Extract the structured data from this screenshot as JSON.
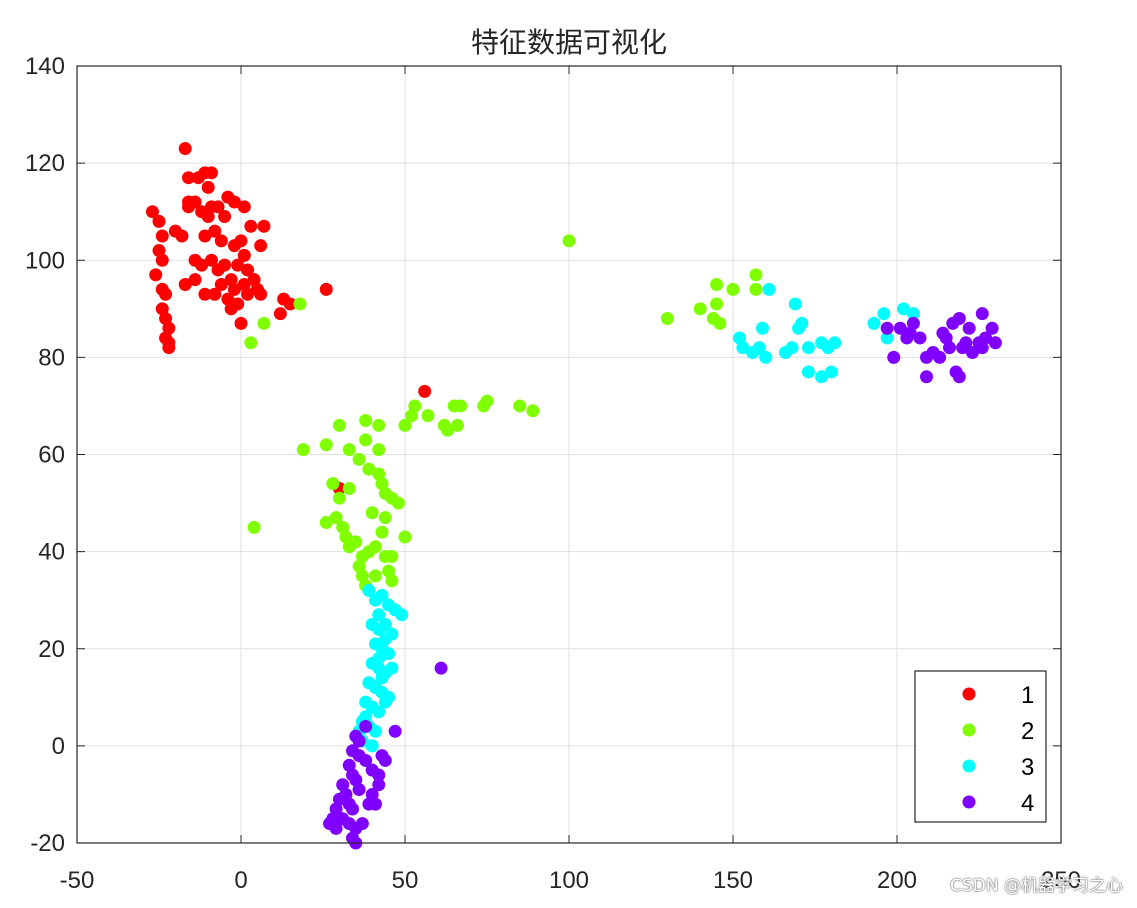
{
  "watermark": "CSDN @机器学习之心",
  "chart_data": {
    "type": "scatter",
    "title": "特征数据可视化",
    "xlim": [
      -50,
      250
    ],
    "ylim": [
      -20,
      140
    ],
    "xticks": [
      -50,
      0,
      50,
      100,
      150,
      200,
      250
    ],
    "yticks": [
      -20,
      0,
      20,
      40,
      60,
      80,
      100,
      120,
      140
    ],
    "grid": true,
    "legend_position": "bottom-right",
    "series": [
      {
        "name": "1",
        "color": "#ff0000",
        "points": [
          [
            -17,
            123
          ],
          [
            -16,
            117
          ],
          [
            -13,
            117
          ],
          [
            -11,
            118
          ],
          [
            -9,
            118
          ],
          [
            -27,
            110
          ],
          [
            -25,
            108
          ],
          [
            -24,
            105
          ],
          [
            -25,
            102
          ],
          [
            -24,
            100
          ],
          [
            -26,
            97
          ],
          [
            -24,
            94
          ],
          [
            -23,
            93
          ],
          [
            -24,
            90
          ],
          [
            -23,
            88
          ],
          [
            -22,
            86
          ],
          [
            -23,
            84
          ],
          [
            -22,
            83
          ],
          [
            -22,
            82
          ],
          [
            -20,
            106
          ],
          [
            -18,
            105
          ],
          [
            -16,
            111
          ],
          [
            -14,
            112
          ],
          [
            -12,
            110
          ],
          [
            -10,
            109
          ],
          [
            -7,
            111
          ],
          [
            -4,
            113
          ],
          [
            -2,
            112
          ],
          [
            -5,
            109
          ],
          [
            -8,
            106
          ],
          [
            -11,
            105
          ],
          [
            -14,
            100
          ],
          [
            -12,
            99
          ],
          [
            -9,
            100
          ],
          [
            -7,
            98
          ],
          [
            -5,
            99
          ],
          [
            -3,
            96
          ],
          [
            -6,
            95
          ],
          [
            -8,
            93
          ],
          [
            -11,
            93
          ],
          [
            -14,
            96
          ],
          [
            -17,
            95
          ],
          [
            -2,
            103
          ],
          [
            0,
            104
          ],
          [
            1,
            101
          ],
          [
            -1,
            99
          ],
          [
            2,
            98
          ],
          [
            4,
            96
          ],
          [
            1,
            95
          ],
          [
            -2,
            94
          ],
          [
            -4,
            92
          ],
          [
            -1,
            91
          ],
          [
            2,
            93
          ],
          [
            5,
            94
          ],
          [
            6,
            93
          ],
          [
            1,
            111
          ],
          [
            3,
            107
          ],
          [
            6,
            103
          ],
          [
            7,
            107
          ],
          [
            0,
            87
          ],
          [
            -3,
            90
          ],
          [
            12,
            89
          ],
          [
            13,
            92
          ],
          [
            15,
            91
          ],
          [
            26,
            94
          ],
          [
            -6,
            104
          ],
          [
            -9,
            111
          ],
          [
            -16,
            112
          ],
          [
            -10,
            115
          ],
          [
            56,
            73
          ],
          [
            30,
            53
          ]
        ]
      },
      {
        "name": "2",
        "color": "#80ff00",
        "points": [
          [
            100,
            104
          ],
          [
            18,
            91
          ],
          [
            7,
            87
          ],
          [
            3,
            83
          ],
          [
            130,
            88
          ],
          [
            140,
            90
          ],
          [
            145,
            95
          ],
          [
            145,
            91
          ],
          [
            144,
            88
          ],
          [
            146,
            87
          ],
          [
            150,
            94
          ],
          [
            157,
            97
          ],
          [
            157,
            94
          ],
          [
            19,
            61
          ],
          [
            26,
            62
          ],
          [
            30,
            66
          ],
          [
            33,
            61
          ],
          [
            38,
            63
          ],
          [
            38,
            67
          ],
          [
            42,
            66
          ],
          [
            42,
            61
          ],
          [
            36,
            59
          ],
          [
            39,
            57
          ],
          [
            42,
            56
          ],
          [
            43,
            54
          ],
          [
            44,
            52
          ],
          [
            46,
            51
          ],
          [
            48,
            50
          ],
          [
            50,
            43
          ],
          [
            28,
            54
          ],
          [
            30,
            51
          ],
          [
            33,
            53
          ],
          [
            26,
            46
          ],
          [
            29,
            47
          ],
          [
            31,
            45
          ],
          [
            32,
            43
          ],
          [
            33,
            41
          ],
          [
            35,
            42
          ],
          [
            37,
            39
          ],
          [
            39,
            40
          ],
          [
            41,
            41
          ],
          [
            43,
            44
          ],
          [
            44,
            39
          ],
          [
            46,
            39
          ],
          [
            44,
            47
          ],
          [
            36,
            37
          ],
          [
            37,
            35
          ],
          [
            38,
            33
          ],
          [
            41,
            35
          ],
          [
            45,
            36
          ],
          [
            46,
            34
          ],
          [
            4,
            45
          ],
          [
            50,
            66
          ],
          [
            52,
            68
          ],
          [
            53,
            70
          ],
          [
            57,
            68
          ],
          [
            62,
            66
          ],
          [
            63,
            65
          ],
          [
            65,
            70
          ],
          [
            66,
            66
          ],
          [
            67,
            70
          ],
          [
            74,
            70
          ],
          [
            75,
            71
          ],
          [
            85,
            70
          ],
          [
            89,
            69
          ],
          [
            40,
            48
          ]
        ]
      },
      {
        "name": "3",
        "color": "#00ffff",
        "points": [
          [
            161,
            94
          ],
          [
            169,
            91
          ],
          [
            159,
            86
          ],
          [
            170,
            86
          ],
          [
            171,
            87
          ],
          [
            152,
            84
          ],
          [
            153,
            82
          ],
          [
            156,
            81
          ],
          [
            158,
            82
          ],
          [
            160,
            80
          ],
          [
            166,
            81
          ],
          [
            168,
            82
          ],
          [
            173,
            82
          ],
          [
            177,
            83
          ],
          [
            179,
            82
          ],
          [
            181,
            83
          ],
          [
            173,
            77
          ],
          [
            177,
            76
          ],
          [
            180,
            77
          ],
          [
            193,
            87
          ],
          [
            196,
            89
          ],
          [
            197,
            84
          ],
          [
            202,
            90
          ],
          [
            205,
            89
          ],
          [
            39,
            32
          ],
          [
            41,
            30
          ],
          [
            43,
            31
          ],
          [
            45,
            29
          ],
          [
            47,
            28
          ],
          [
            49,
            27
          ],
          [
            40,
            25
          ],
          [
            42,
            24
          ],
          [
            44,
            25
          ],
          [
            46,
            23
          ],
          [
            41,
            21
          ],
          [
            43,
            20
          ],
          [
            45,
            19
          ],
          [
            40,
            17
          ],
          [
            42,
            16
          ],
          [
            44,
            15
          ],
          [
            46,
            16
          ],
          [
            39,
            13
          ],
          [
            41,
            12
          ],
          [
            43,
            11
          ],
          [
            45,
            10
          ],
          [
            38,
            9
          ],
          [
            40,
            8
          ],
          [
            42,
            7
          ],
          [
            44,
            9
          ],
          [
            37,
            5
          ],
          [
            39,
            4
          ],
          [
            41,
            3
          ],
          [
            35,
            2
          ],
          [
            37,
            1
          ],
          [
            40,
            0
          ],
          [
            36,
            3
          ],
          [
            38,
            6
          ],
          [
            43,
            14
          ],
          [
            44,
            22
          ],
          [
            42,
            27
          ],
          [
            42,
            18
          ]
        ]
      },
      {
        "name": "4",
        "color": "#8000ff",
        "points": [
          [
            199,
            80
          ],
          [
            201,
            86
          ],
          [
            203,
            84
          ],
          [
            204,
            85
          ],
          [
            205,
            87
          ],
          [
            207,
            84
          ],
          [
            209,
            80
          ],
          [
            211,
            81
          ],
          [
            213,
            80
          ],
          [
            214,
            85
          ],
          [
            216,
            82
          ],
          [
            217,
            87
          ],
          [
            219,
            88
          ],
          [
            220,
            82
          ],
          [
            221,
            83
          ],
          [
            223,
            81
          ],
          [
            225,
            83
          ],
          [
            226,
            89
          ],
          [
            227,
            84
          ],
          [
            229,
            86
          ],
          [
            230,
            83
          ],
          [
            209,
            76
          ],
          [
            218,
            77
          ],
          [
            219,
            76
          ],
          [
            61,
            16
          ],
          [
            47,
            3
          ],
          [
            38,
            4
          ],
          [
            35,
            2
          ],
          [
            36,
            1
          ],
          [
            34,
            -1
          ],
          [
            36,
            -2
          ],
          [
            38,
            -3
          ],
          [
            40,
            -5
          ],
          [
            42,
            -6
          ],
          [
            43,
            -2
          ],
          [
            44,
            -3
          ],
          [
            33,
            -4
          ],
          [
            34,
            -6
          ],
          [
            35,
            -7
          ],
          [
            36,
            -9
          ],
          [
            31,
            -8
          ],
          [
            32,
            -10
          ],
          [
            33,
            -12
          ],
          [
            34,
            -13
          ],
          [
            30,
            -11
          ],
          [
            29,
            -13
          ],
          [
            28,
            -15
          ],
          [
            27,
            -16
          ],
          [
            29,
            -17
          ],
          [
            31,
            -15
          ],
          [
            33,
            -16
          ],
          [
            35,
            -17
          ],
          [
            37,
            -16
          ],
          [
            39,
            -12
          ],
          [
            40,
            -10
          ],
          [
            41,
            -12
          ],
          [
            42,
            -8
          ],
          [
            34,
            -19
          ],
          [
            35,
            -20
          ],
          [
            197,
            86
          ],
          [
            215,
            84
          ],
          [
            222,
            86
          ],
          [
            226,
            82
          ]
        ]
      }
    ]
  }
}
